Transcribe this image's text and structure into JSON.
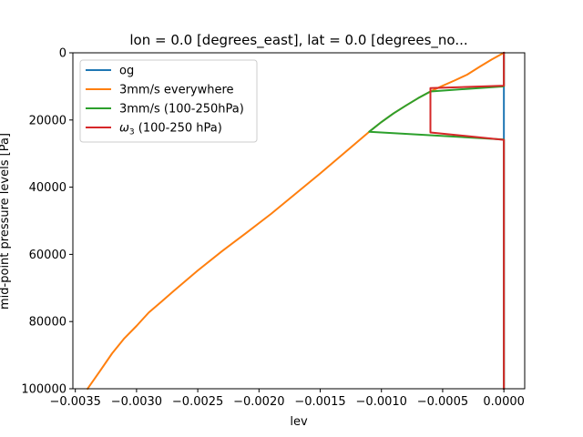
{
  "chart_data": {
    "type": "line",
    "title": "lon = 0.0 [degrees_east], lat = 0.0 [degrees_no...",
    "xlabel": "lev",
    "ylabel": "mid-point pressure levels [Pa]",
    "xlim": [
      -0.00352,
      0.00017
    ],
    "ylim": [
      100000,
      0
    ],
    "y_inverted": true,
    "xticks": [
      -0.0035,
      -0.003,
      -0.0025,
      -0.002,
      -0.0015,
      -0.001,
      -0.0005,
      0.0
    ],
    "xtick_labels": [
      "−0.0035",
      "−0.0030",
      "−0.0025",
      "−0.0020",
      "−0.0015",
      "−0.0010",
      "−0.0005",
      "0.0000"
    ],
    "yticks": [
      0,
      20000,
      40000,
      60000,
      80000,
      100000
    ],
    "ytick_labels": [
      "0",
      "20000",
      "40000",
      "60000",
      "80000",
      "100000"
    ],
    "grid": false,
    "legend_position": "upper-left",
    "series": [
      {
        "name": "og",
        "color": "#1f77b4",
        "points": [
          [
            0.0,
            0
          ],
          [
            0.0,
            10000
          ],
          [
            0.0,
            26000
          ],
          [
            0.0,
            40000
          ],
          [
            0.0,
            60000
          ],
          [
            0.0,
            80000
          ],
          [
            0.0,
            100000
          ]
        ]
      },
      {
        "name": "3mm/s everywhere",
        "color": "#ff7f0e",
        "points": [
          [
            0.0,
            0
          ],
          [
            -0.0001,
            2000
          ],
          [
            -0.0002,
            4200
          ],
          [
            -0.0003,
            6500
          ],
          [
            -0.0004,
            8200
          ],
          [
            -0.0005,
            9800
          ],
          [
            -0.0006,
            11500
          ],
          [
            -0.0007,
            13500
          ],
          [
            -0.0008,
            15700
          ],
          [
            -0.0009,
            18000
          ],
          [
            -0.001,
            20600
          ],
          [
            -0.0011,
            23500
          ],
          [
            -0.0013,
            29700
          ],
          [
            -0.0015,
            35900
          ],
          [
            -0.0017,
            41900
          ],
          [
            -0.0019,
            47900
          ],
          [
            -0.0021,
            53500
          ],
          [
            -0.0023,
            59000
          ],
          [
            -0.0025,
            64800
          ],
          [
            -0.0027,
            71000
          ],
          [
            -0.0028,
            74200
          ],
          [
            -0.0029,
            77300
          ],
          [
            -0.003,
            81300
          ],
          [
            -0.0031,
            85000
          ],
          [
            -0.0032,
            89500
          ],
          [
            -0.0033,
            94800
          ],
          [
            -0.0034,
            100000
          ]
        ]
      },
      {
        "name": "3mm/s (100-250hPa)",
        "color": "#2ca02c",
        "points": [
          [
            0.0,
            0
          ],
          [
            0.0,
            10000
          ],
          [
            -0.0006,
            11500
          ],
          [
            -0.0007,
            13500
          ],
          [
            -0.0008,
            15700
          ],
          [
            -0.0009,
            18000
          ],
          [
            -0.001,
            20600
          ],
          [
            -0.0011,
            23500
          ],
          [
            0.0,
            25800
          ],
          [
            0.0,
            40000
          ],
          [
            0.0,
            60000
          ],
          [
            0.0,
            80000
          ],
          [
            0.0,
            100000
          ]
        ]
      },
      {
        "name": "ω₃ (100-250 hPa)",
        "legend_base": "ω",
        "legend_sub": "3",
        "legend_rest": " (100-250 hPa)",
        "color": "#d62728",
        "points": [
          [
            0.0,
            0
          ],
          [
            0.0,
            9800
          ],
          [
            -0.0006,
            10500
          ],
          [
            -0.0006,
            23700
          ],
          [
            0.0,
            25900
          ],
          [
            0.0,
            40000
          ],
          [
            0.0,
            60000
          ],
          [
            0.0,
            80000
          ],
          [
            0.0,
            100000
          ]
        ]
      }
    ]
  }
}
